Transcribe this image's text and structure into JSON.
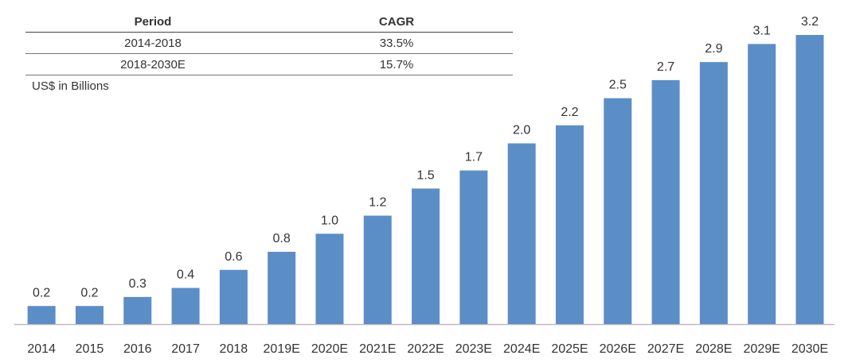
{
  "table": {
    "headers": [
      "Period",
      "CAGR"
    ],
    "rows": [
      [
        "2014-2018",
        "33.5%"
      ],
      [
        "2018-2030E",
        "15.7%"
      ]
    ]
  },
  "unit_label": "US$ in Billions",
  "colors": {
    "bar": "#5b8ec6",
    "axis": "#bbbbbb"
  },
  "chart_data": {
    "type": "bar",
    "title": "",
    "xlabel": "",
    "ylabel": "US$ in Billions",
    "ylim": [
      0,
      3.2
    ],
    "grid": false,
    "categories": [
      "2014",
      "2015",
      "2016",
      "2017",
      "2018",
      "2019E",
      "2020E",
      "2021E",
      "2022E",
      "2023E",
      "2024E",
      "2025E",
      "2026E",
      "2027E",
      "2028E",
      "2029E",
      "2030E"
    ],
    "values": [
      0.2,
      0.2,
      0.3,
      0.4,
      0.6,
      0.8,
      1.0,
      1.2,
      1.5,
      1.7,
      2.0,
      2.2,
      2.5,
      2.7,
      2.9,
      3.1,
      3.2
    ],
    "value_labels": [
      "0.2",
      "0.2",
      "0.3",
      "0.4",
      "0.6",
      "0.8",
      "1.0",
      "1.2",
      "1.5",
      "1.7",
      "2.0",
      "2.2",
      "2.5",
      "2.7",
      "2.9",
      "3.1",
      "3.2"
    ]
  }
}
